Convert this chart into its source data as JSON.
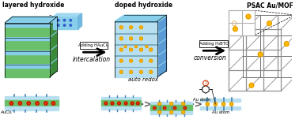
{
  "label_layered": "layered hydroxide",
  "label_doped": "doped hydroxide",
  "label_psac": "PSAC Au/MOF",
  "label_intercalation": "intercalation",
  "label_auto_redox": "auto redox",
  "label_conversion": "conversion",
  "label_adding1": "Adding HAuCl₄",
  "label_adding2": "Adding H₃BTC",
  "label_aucl4": "AuCl₄⁻",
  "label_au_atom1": "Au atom",
  "label_au_atom2": "Au atom",
  "bg_color": "#ffffff",
  "green_light": "#6abf6a",
  "green_dark": "#3a8a3a",
  "blue_light": "#87ceeb",
  "blue_mid": "#5b9bd5",
  "blue_pale": "#b8dff0",
  "gold": "#FFB800",
  "gold_edge": "#cc8800",
  "red_dot": "#e03000",
  "gray_mof": "#909090",
  "gray_mof_dark": "#606060"
}
